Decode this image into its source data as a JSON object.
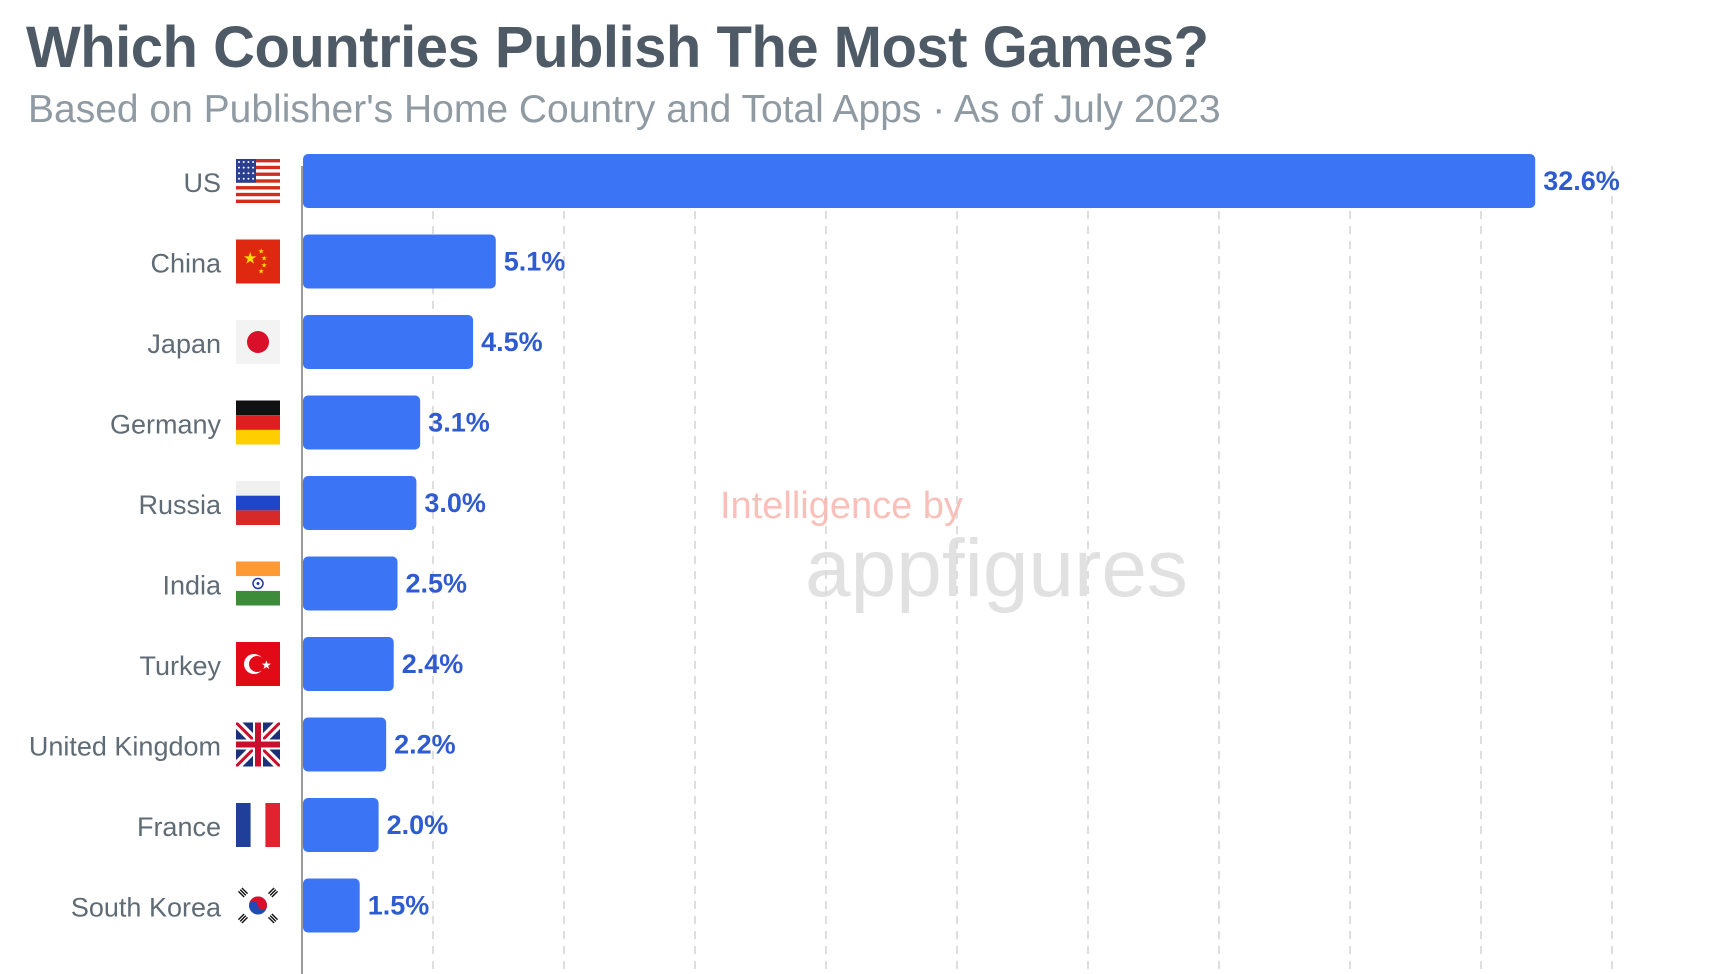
{
  "header": {
    "title": "Which Countries Publish The Most Games?",
    "subtitle": "Based on Publisher's Home Country and Total Apps · As of July 2023"
  },
  "watermark": {
    "line1": "Intelligence by",
    "line2": "appfigures"
  },
  "colors": {
    "bar": "#3b74f5",
    "value_label": "#2f5bd0",
    "gridline": "#d4d4d4",
    "axis": "#9a9a9a"
  },
  "chart_data": {
    "type": "bar",
    "orientation": "horizontal",
    "categories": [
      "US",
      "China",
      "Japan",
      "Germany",
      "Russia",
      "India",
      "Turkey",
      "United Kingdom",
      "France",
      "South Korea"
    ],
    "values": [
      32.6,
      5.1,
      4.5,
      3.1,
      3.0,
      2.5,
      2.4,
      2.2,
      2.0,
      1.5
    ],
    "value_labels": [
      "32.6%",
      "5.1%",
      "4.5%",
      "3.1%",
      "3.0%",
      "2.5%",
      "2.4%",
      "2.2%",
      "2.0%",
      "1.5%"
    ],
    "flags": [
      "us-flag-icon",
      "china-flag-icon",
      "japan-flag-icon",
      "germany-flag-icon",
      "russia-flag-icon",
      "india-flag-icon",
      "turkey-flag-icon",
      "united-kingdom-flag-icon",
      "france-flag-icon",
      "south-korea-flag-icon"
    ],
    "xlim": [
      0,
      33.6
    ],
    "grid": true,
    "legend": "none",
    "title": "Which Countries Publish The Most Games?",
    "subtitle": "Based on Publisher's Home Country and Total Apps · As of July 2023"
  }
}
